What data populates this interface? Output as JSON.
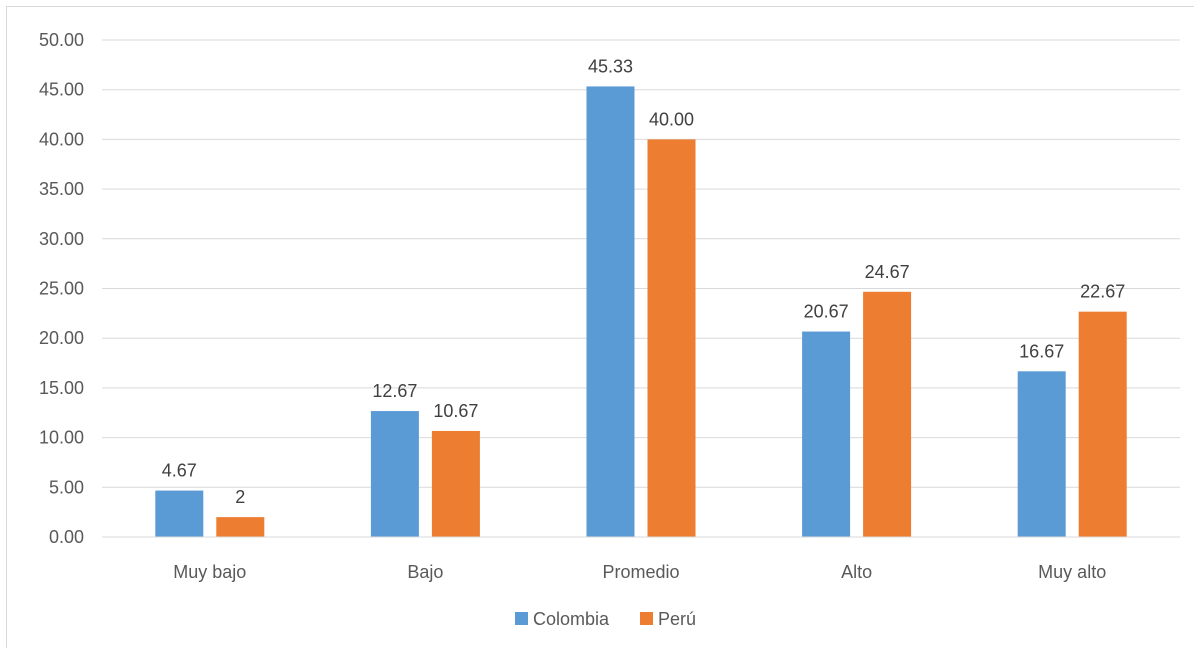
{
  "chart_data": {
    "type": "bar",
    "categories": [
      "Muy bajo",
      "Bajo",
      "Promedio",
      "Alto",
      "Muy alto"
    ],
    "series": [
      {
        "name": "Colombia",
        "values": [
          4.67,
          12.67,
          45.33,
          20.67,
          16.67
        ],
        "labels": [
          "4.67",
          "12.67",
          "45.33",
          "20.67",
          "16.67"
        ],
        "color": "#5b9bd5"
      },
      {
        "name": "Perú",
        "values": [
          2,
          10.67,
          40.0,
          24.67,
          22.67
        ],
        "labels": [
          "2",
          "10.67",
          "40.00",
          "24.67",
          "22.67"
        ],
        "color": "#ed7d31"
      }
    ],
    "yticks": [
      "0.00",
      "5.00",
      "10.00",
      "15.00",
      "20.00",
      "25.00",
      "30.00",
      "35.00",
      "40.00",
      "45.00",
      "50.00"
    ],
    "ylim": [
      0,
      50
    ],
    "grid": true,
    "legend_position": "bottom"
  }
}
